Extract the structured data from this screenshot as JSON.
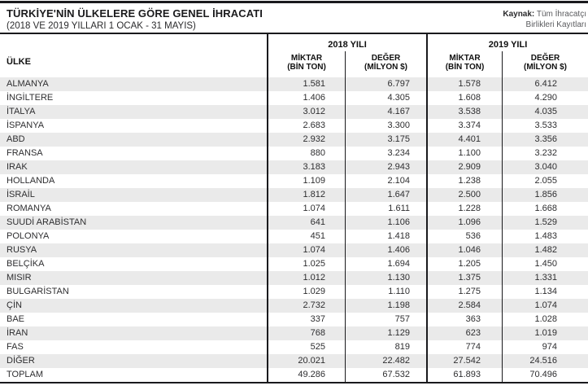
{
  "header": {
    "title": "TÜRKİYE'NİN ÜLKELERE GÖRE GENEL İHRACATI",
    "subtitle": "(2018 VE 2019 YILLARI 1 OCAK - 31 MAYIS)",
    "source_label": "Kaynak:",
    "source_line1": "Tüm İhracatçı",
    "source_line2": "Birlikleri Kayıtları"
  },
  "table": {
    "country_header": "ÜLKE",
    "year_groups": [
      {
        "label": "2018 YILI"
      },
      {
        "label": "2019 YILI"
      }
    ],
    "subheaders": {
      "miktar_line1": "MİKTAR",
      "miktar_line2": "(BİN TON)",
      "deger_line1": "DEĞER",
      "deger_line2": "(MİLYON $)"
    },
    "rows": [
      {
        "country": "ALMANYA",
        "m2018": "1.581",
        "d2018": "6.797",
        "m2019": "1.578",
        "d2019": "6.412"
      },
      {
        "country": "İNGİLTERE",
        "m2018": "1.406",
        "d2018": "4.305",
        "m2019": "1.608",
        "d2019": "4.290"
      },
      {
        "country": "İTALYA",
        "m2018": "3.012",
        "d2018": "4.167",
        "m2019": "3.538",
        "d2019": "4.035"
      },
      {
        "country": "İSPANYA",
        "m2018": "2.683",
        "d2018": "3.300",
        "m2019": "3.374",
        "d2019": "3.533"
      },
      {
        "country": "ABD",
        "m2018": "2.932",
        "d2018": "3.175",
        "m2019": "4.401",
        "d2019": "3.356"
      },
      {
        "country": "FRANSA",
        "m2018": "880",
        "d2018": "3.234",
        "m2019": "1.100",
        "d2019": "3.232"
      },
      {
        "country": "IRAK",
        "m2018": "3.183",
        "d2018": "2.943",
        "m2019": "2.909",
        "d2019": "3.040"
      },
      {
        "country": "HOLLANDA",
        "m2018": "1.109",
        "d2018": "2.104",
        "m2019": "1.238",
        "d2019": "2.055"
      },
      {
        "country": "İSRAİL",
        "m2018": "1.812",
        "d2018": "1.647",
        "m2019": "2.500",
        "d2019": "1.856"
      },
      {
        "country": "ROMANYA",
        "m2018": "1.074",
        "d2018": "1.611",
        "m2019": "1.228",
        "d2019": "1.668"
      },
      {
        "country": "SUUDİ ARABİSTAN",
        "m2018": "641",
        "d2018": "1.106",
        "m2019": "1.096",
        "d2019": "1.529"
      },
      {
        "country": "POLONYA",
        "m2018": "451",
        "d2018": "1.418",
        "m2019": "536",
        "d2019": "1.483"
      },
      {
        "country": "RUSYA",
        "m2018": "1.074",
        "d2018": "1.406",
        "m2019": "1.046",
        "d2019": "1.482"
      },
      {
        "country": "BELÇİKA",
        "m2018": "1.025",
        "d2018": "1.694",
        "m2019": "1.205",
        "d2019": "1.450"
      },
      {
        "country": "MISIR",
        "m2018": "1.012",
        "d2018": "1.130",
        "m2019": "1.375",
        "d2019": "1.331"
      },
      {
        "country": "BULGARİSTAN",
        "m2018": "1.029",
        "d2018": "1.110",
        "m2019": "1.275",
        "d2019": "1.134"
      },
      {
        "country": "ÇİN",
        "m2018": "2.732",
        "d2018": "1.198",
        "m2019": "2.584",
        "d2019": "1.074"
      },
      {
        "country": "BAE",
        "m2018": "337",
        "d2018": "757",
        "m2019": "363",
        "d2019": "1.028"
      },
      {
        "country": "İRAN",
        "m2018": "768",
        "d2018": "1.129",
        "m2019": "623",
        "d2019": "1.019"
      },
      {
        "country": "FAS",
        "m2018": "525",
        "d2018": "819",
        "m2019": "774",
        "d2019": "974"
      },
      {
        "country": "DİĞER",
        "m2018": "20.021",
        "d2018": "22.482",
        "m2019": "27.542",
        "d2019": "24.516"
      },
      {
        "country": "TOPLAM",
        "m2018": "49.286",
        "d2018": "67.532",
        "m2019": "61.893",
        "d2019": "70.496"
      }
    ]
  },
  "colors": {
    "line_black": "#1a1a1d",
    "row_stripe": "#eaeaea",
    "source_gray": "#5a5b5e"
  },
  "chart_data": {
    "type": "table",
    "title": "TÜRKİYE'NİN ÜLKELERE GÖRE GENEL İHRACATI (2018 VE 2019 YILLARI 1 OCAK - 31 MAYIS)",
    "columns": [
      "ÜLKE",
      "2018 YILI MİKTAR (BİN TON)",
      "2018 YILI DEĞER (MİLYON $)",
      "2019 YILI MİKTAR (BİN TON)",
      "2019 YILI DEĞER (MİLYON $)"
    ],
    "rows": [
      [
        "ALMANYA",
        "1.581",
        "6.797",
        "1.578",
        "6.412"
      ],
      [
        "İNGİLTERE",
        "1.406",
        "4.305",
        "1.608",
        "4.290"
      ],
      [
        "İTALYA",
        "3.012",
        "4.167",
        "3.538",
        "4.035"
      ],
      [
        "İSPANYA",
        "2.683",
        "3.300",
        "3.374",
        "3.533"
      ],
      [
        "ABD",
        "2.932",
        "3.175",
        "4.401",
        "3.356"
      ],
      [
        "FRANSA",
        "880",
        "3.234",
        "1.100",
        "3.232"
      ],
      [
        "IRAK",
        "3.183",
        "2.943",
        "2.909",
        "3.040"
      ],
      [
        "HOLLANDA",
        "1.109",
        "2.104",
        "1.238",
        "2.055"
      ],
      [
        "İSRAİL",
        "1.812",
        "1.647",
        "2.500",
        "1.856"
      ],
      [
        "ROMANYA",
        "1.074",
        "1.611",
        "1.228",
        "1.668"
      ],
      [
        "SUUDİ ARABİSTAN",
        "641",
        "1.106",
        "1.096",
        "1.529"
      ],
      [
        "POLONYA",
        "451",
        "1.418",
        "536",
        "1.483"
      ],
      [
        "RUSYA",
        "1.074",
        "1.406",
        "1.046",
        "1.482"
      ],
      [
        "BELÇİKA",
        "1.025",
        "1.694",
        "1.205",
        "1.450"
      ],
      [
        "MISIR",
        "1.012",
        "1.130",
        "1.375",
        "1.331"
      ],
      [
        "BULGARİSTAN",
        "1.029",
        "1.110",
        "1.275",
        "1.134"
      ],
      [
        "ÇİN",
        "2.732",
        "1.198",
        "2.584",
        "1.074"
      ],
      [
        "BAE",
        "337",
        "757",
        "363",
        "1.028"
      ],
      [
        "İRAN",
        "768",
        "1.129",
        "623",
        "1.019"
      ],
      [
        "FAS",
        "525",
        "819",
        "774",
        "974"
      ],
      [
        "DİĞER",
        "20.021",
        "22.482",
        "27.542",
        "24.516"
      ],
      [
        "TOPLAM",
        "49.286",
        "67.532",
        "61.893",
        "70.496"
      ]
    ]
  }
}
